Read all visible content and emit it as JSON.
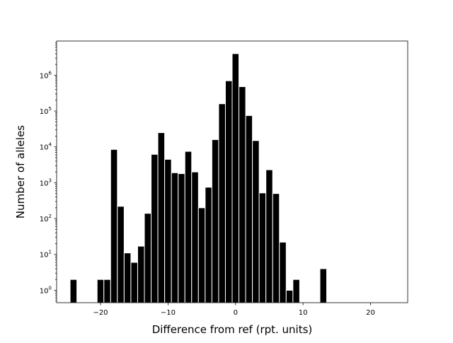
{
  "chart_data": {
    "type": "bar",
    "title": "",
    "xlabel": "Difference from ref (rpt. units)",
    "ylabel": "Number of alleles",
    "xlim": [
      -26.5,
      25.5
    ],
    "ylim": [
      0.45,
      9000000
    ],
    "yscale": "log",
    "grid": false,
    "bar_color": "#000000",
    "bar_edge_color": "#ffffff",
    "bar_width": 1,
    "x_ticks": [
      -20,
      -10,
      0,
      10,
      20
    ],
    "x_tick_labels": [
      "−20",
      "−10",
      "0",
      "10",
      "20"
    ],
    "y_major_ticks": [
      1,
      10,
      100,
      1000,
      10000,
      100000,
      1000000
    ],
    "y_tick_labels": [
      {
        "base": "10",
        "exp": "0"
      },
      {
        "base": "10",
        "exp": "1"
      },
      {
        "base": "10",
        "exp": "2"
      },
      {
        "base": "10",
        "exp": "3"
      },
      {
        "base": "10",
        "exp": "4"
      },
      {
        "base": "10",
        "exp": "5"
      },
      {
        "base": "10",
        "exp": "6"
      }
    ],
    "x": [
      -24,
      -20,
      -19,
      -18,
      -17,
      -16,
      -15,
      -14,
      -13,
      -12,
      -11,
      -10,
      -9,
      -8,
      -7,
      -6,
      -5,
      -4,
      -3,
      -2,
      -1,
      0,
      1,
      2,
      3,
      4,
      5,
      6,
      7,
      8,
      9,
      13
    ],
    "values": [
      2,
      2,
      2,
      8500,
      220,
      11,
      6,
      17,
      140,
      6200,
      25000,
      4500,
      1900,
      1800,
      7500,
      2000,
      200,
      750,
      16000,
      160000,
      700000,
      4000000,
      480000,
      75000,
      15000,
      520,
      2300,
      500,
      22,
      1,
      2,
      4
    ]
  }
}
